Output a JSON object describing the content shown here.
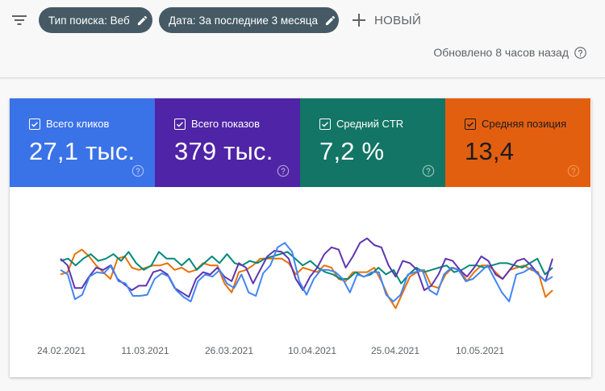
{
  "toolbar": {
    "filter_icon": "filter-list-icon",
    "chips": [
      {
        "label": "Тип поиска: Веб",
        "icon": "pencil-icon"
      },
      {
        "label": "Дата: За последние 3 месяца",
        "icon": "pencil-icon"
      }
    ],
    "new_button": {
      "label": "НОВЫЙ",
      "icon": "plus-icon"
    },
    "updated_text": "Обновлено 8 часов назад",
    "updated_help_icon": "help-circle-icon"
  },
  "metrics": [
    {
      "label": "Всего кликов",
      "value": "27,1 тыс.",
      "color": "#3a72e8",
      "checked": true
    },
    {
      "label": "Всего показов",
      "value": "379 тыс.",
      "color": "#4f24a6",
      "checked": true
    },
    {
      "label": "Средний CTR",
      "value": "7,2 %",
      "color": "#137565",
      "checked": true
    },
    {
      "label": "Средняя позиция",
      "value": "13,4",
      "color": "#e35f10",
      "checked": true
    }
  ],
  "chart_data": {
    "type": "line",
    "title": "",
    "xlabel": "",
    "ylabel": "",
    "grid": false,
    "legend_position": "top (metric tiles)",
    "x_tick_labels": [
      "24.02.2021",
      "11.03.2021",
      "26.03.2021",
      "10.04.2021",
      "25.04.2021",
      "10.05.2021"
    ],
    "x_range": [
      "2021-02-20",
      "2021-05-19"
    ],
    "series": [
      {
        "name": "Всего кликов",
        "color": "#4285f4",
        "values": [
          48,
          44,
          22,
          26,
          42,
          46,
          45,
          52,
          38,
          36,
          25,
          25,
          26,
          40,
          45,
          42,
          30,
          24,
          20,
          38,
          44,
          42,
          48,
          36,
          32,
          44,
          28,
          25,
          45,
          52,
          68,
          72,
          64,
          38,
          26,
          40,
          48,
          48,
          46,
          40,
          28,
          44,
          42,
          46,
          46,
          26,
          20,
          26,
          44,
          46,
          48,
          30,
          26,
          44,
          50,
          48,
          38,
          40,
          46,
          52,
          40,
          28,
          20,
          44,
          46,
          50,
          44,
          38,
          42
        ]
      },
      {
        "name": "Всего показов",
        "color": "#5e35b1",
        "values": [
          58,
          52,
          32,
          32,
          42,
          50,
          48,
          52,
          40,
          35,
          30,
          34,
          34,
          46,
          48,
          44,
          32,
          28,
          24,
          40,
          46,
          44,
          50,
          42,
          38,
          54,
          50,
          36,
          48,
          60,
          65,
          64,
          58,
          40,
          30,
          42,
          50,
          62,
          68,
          66,
          50,
          60,
          72,
          76,
          70,
          68,
          52,
          42,
          56,
          54,
          48,
          30,
          34,
          44,
          58,
          56,
          48,
          42,
          50,
          60,
          56,
          44,
          40,
          48,
          56,
          58,
          52,
          44,
          38,
          58
        ]
      },
      {
        "name": "Средний CTR",
        "color": "#00897b",
        "values": [
          56,
          58,
          52,
          58,
          62,
          56,
          58,
          62,
          56,
          64,
          54,
          48,
          52,
          64,
          58,
          58,
          52,
          58,
          48,
          54,
          60,
          54,
          62,
          54,
          52,
          56,
          54,
          58,
          60,
          62,
          64,
          58,
          52,
          56,
          50,
          46,
          44,
          40,
          40,
          46,
          42,
          44,
          50,
          44,
          48,
          36,
          44,
          50,
          46,
          48,
          50,
          52,
          46,
          48,
          52,
          52,
          50,
          52,
          54,
          54,
          52,
          50,
          54,
          58,
          44,
          50
        ]
      },
      {
        "name": "Средняя позиция",
        "color": "#e8710a",
        "values": [
          44,
          46,
          62,
          66,
          60,
          52,
          46,
          40,
          58,
          60,
          50,
          48,
          50,
          52,
          52,
          54,
          48,
          50,
          46,
          48,
          54,
          52,
          52,
          36,
          28,
          46,
          48,
          52,
          58,
          58,
          58,
          58,
          54,
          44,
          50,
          48,
          46,
          52,
          50,
          40,
          38,
          46,
          46,
          46,
          50,
          38,
          24,
          14,
          28,
          42,
          46,
          48,
          34,
          32,
          44,
          50,
          48,
          38,
          46,
          52,
          52,
          46,
          40,
          48,
          50,
          52,
          48,
          46,
          24,
          30
        ]
      }
    ]
  }
}
